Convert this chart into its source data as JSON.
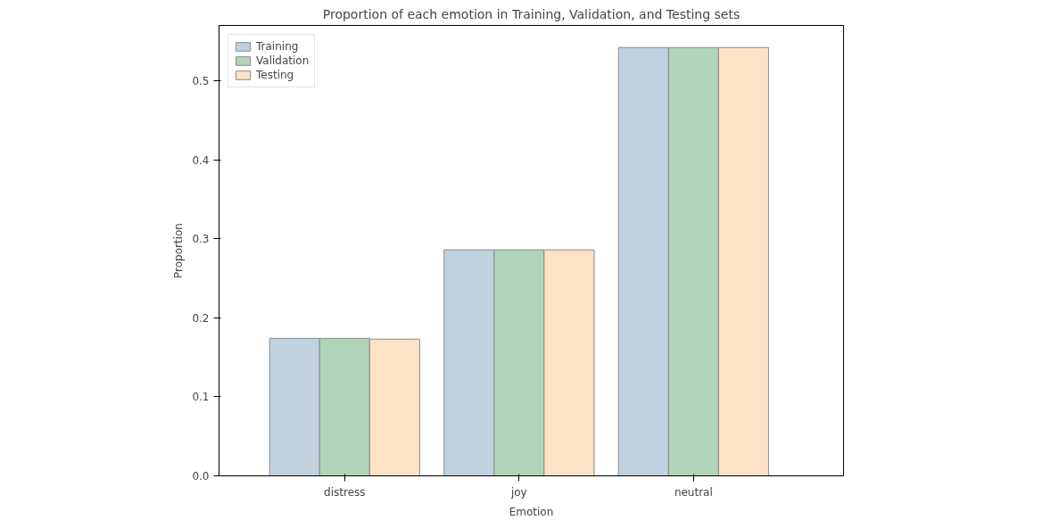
{
  "chart_data": {
    "type": "bar",
    "title": "Proportion of each emotion in Training, Validation, and Testing sets",
    "xlabel": "Emotion",
    "ylabel": "Proportion",
    "categories": [
      "distress",
      "joy",
      "neutral"
    ],
    "series": [
      {
        "name": "Training",
        "color": "#c0d1df",
        "values": [
          0.174,
          0.286,
          0.542
        ]
      },
      {
        "name": "Validation",
        "color": "#b1d4b9",
        "values": [
          0.174,
          0.286,
          0.542
        ]
      },
      {
        "name": "Testing",
        "color": "#fde3c5",
        "values": [
          0.173,
          0.286,
          0.542
        ]
      }
    ],
    "ylim": [
      0,
      0.57
    ],
    "yticks": [
      {
        "value": 0,
        "label": "0.0"
      },
      0.1,
      0.2,
      0.3,
      0.4,
      0.5
    ],
    "grid": false,
    "legend": "top left"
  }
}
